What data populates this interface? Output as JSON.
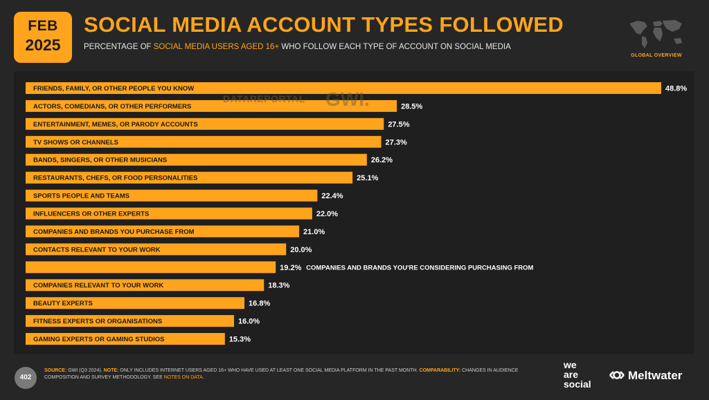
{
  "header": {
    "month": "FEB",
    "year": "2025",
    "title": "SOCIAL MEDIA ACCOUNT TYPES FOLLOWED",
    "subtitle_pre": "PERCENTAGE OF ",
    "subtitle_highlight": "SOCIAL MEDIA USERS AGED 16+",
    "subtitle_post": " WHO FOLLOW EACH TYPE OF ACCOUNT ON SOCIAL MEDIA",
    "map_label": "GLOBAL OVERVIEW"
  },
  "watermark": {
    "dr": "DATAREPORTAL",
    "gwi": "GWI."
  },
  "chart_data": {
    "type": "bar",
    "orientation": "horizontal",
    "categories": [
      "FRIENDS, FAMILY, OR OTHER PEOPLE YOU KNOW",
      "ACTORS, COMEDIANS, OR OTHER PERFORMERS",
      "ENTERTAINMENT, MEMES, OR PARODY ACCOUNTS",
      "TV SHOWS OR CHANNELS",
      "BANDS, SINGERS, OR OTHER MUSICIANS",
      "RESTAURANTS, CHEFS, OR FOOD PERSONALITIES",
      "SPORTS PEOPLE AND TEAMS",
      "INFLUENCERS OR OTHER EXPERTS",
      "COMPANIES AND BRANDS YOU PURCHASE FROM",
      "CONTACTS RELEVANT TO YOUR WORK",
      "COMPANIES AND BRANDS YOU'RE CONSIDERING PURCHASING FROM",
      "COMPANIES RELEVANT TO YOUR WORK",
      "BEAUTY EXPERTS",
      "FITNESS EXPERTS OR ORGANISATIONS",
      "GAMING EXPERTS OR GAMING STUDIOS"
    ],
    "values": [
      48.8,
      28.5,
      27.5,
      27.3,
      26.2,
      25.1,
      22.4,
      22.0,
      21.0,
      20.0,
      19.2,
      18.3,
      16.8,
      16.0,
      15.3
    ],
    "value_labels": [
      "48.8%",
      "28.5%",
      "27.5%",
      "27.3%",
      "26.2%",
      "25.1%",
      "22.4%",
      "22.0%",
      "21.0%",
      "20.0%",
      "19.2%",
      "18.3%",
      "16.8%",
      "16.0%",
      "15.3%"
    ],
    "label_outside_bar": [
      false,
      false,
      false,
      false,
      false,
      false,
      false,
      false,
      false,
      false,
      true,
      false,
      false,
      false,
      false
    ],
    "bar_color": "#ffa41c"
  },
  "footer": {
    "source_label": "SOURCE:",
    "source_text": " GWI (Q3 2024). ",
    "note_label": "NOTE:",
    "note_text": " ONLY INCLUDES INTERNET USERS AGED 16+ WHO HAVE USED AT LEAST ONE SOCIAL MEDIA PLATFORM IN THE PAST MONTH. ",
    "comp_label": "COMPARABILITY:",
    "comp_text": " CHANGES IN AUDIENCE COMPOSITION AND SURVEY METHODOLOGY. SEE ",
    "notes_link": "NOTES ON DATA",
    "end": ".",
    "page_number": "402"
  },
  "brands": {
    "was_1": "we",
    "was_2": "are",
    "was_3": "social",
    "meltwater": "Meltwater"
  },
  "colors": {
    "accent": "#ffa41c",
    "background": "#262626"
  }
}
